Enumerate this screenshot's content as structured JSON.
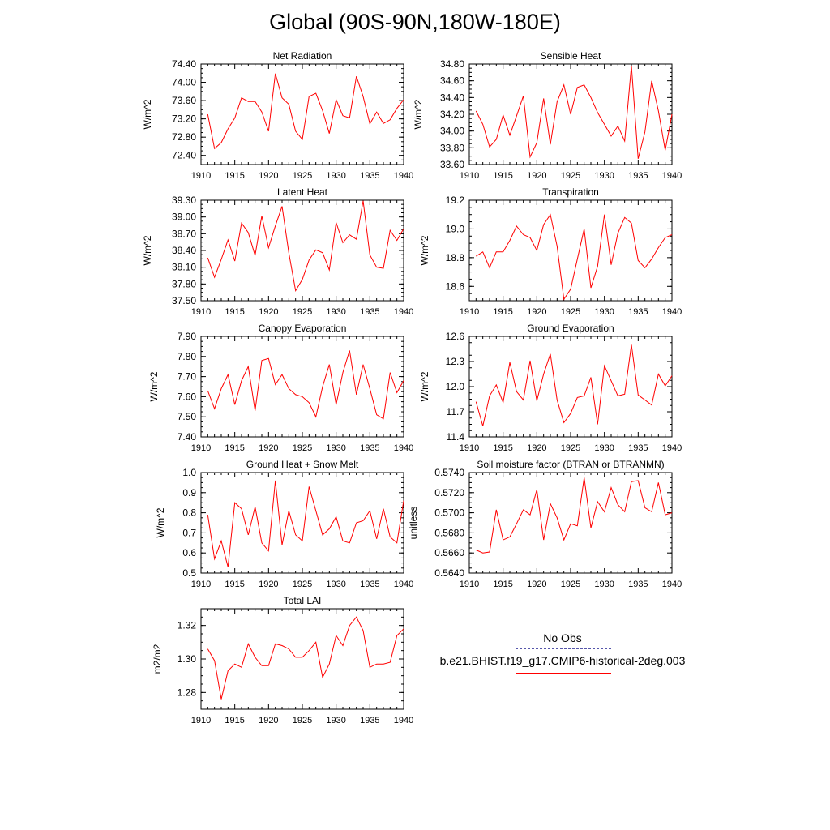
{
  "page_title": "Global (90S-90N,180W-180E)",
  "legend": {
    "obs_label": "No Obs",
    "model_label": "b.e21.BHIST.f19_g17.CMIP6-historical-2deg.003",
    "obs_color": "#5555aa",
    "model_color": "#ff0000"
  },
  "chart_data": [
    {
      "type": "line",
      "title": "Net Radiation",
      "ylabel": "W/m^2",
      "xlim": [
        1910,
        1940
      ],
      "ylim": [
        72.2,
        74.4
      ],
      "yticks": [
        72.4,
        72.8,
        73.2,
        73.6,
        74.0,
        74.4
      ],
      "ytick_labels": [
        "72.40",
        "72.80",
        "73.20",
        "73.60",
        "74.00",
        "74.40"
      ],
      "xticks": [
        1910,
        1915,
        1920,
        1925,
        1930,
        1935,
        1940
      ],
      "x": [
        1911,
        1912,
        1913,
        1914,
        1915,
        1916,
        1917,
        1918,
        1919,
        1920,
        1921,
        1922,
        1923,
        1924,
        1925,
        1926,
        1927,
        1928,
        1929,
        1930,
        1931,
        1932,
        1933,
        1934,
        1935,
        1936,
        1937,
        1938,
        1939,
        1940
      ],
      "series": [
        {
          "values": [
            73.3,
            72.55,
            72.68,
            72.98,
            73.22,
            73.66,
            73.58,
            73.58,
            73.35,
            72.93,
            74.19,
            73.66,
            73.52,
            72.93,
            72.75,
            73.69,
            73.76,
            73.38,
            72.88,
            73.62,
            73.27,
            73.22,
            74.13,
            73.69,
            73.09,
            73.35,
            73.1,
            73.18,
            73.43,
            73.62
          ]
        }
      ]
    },
    {
      "type": "line",
      "title": "Sensible Heat",
      "ylabel": "W/m^2",
      "xlim": [
        1910,
        1940
      ],
      "ylim": [
        33.6,
        34.8
      ],
      "yticks": [
        33.6,
        33.8,
        34.0,
        34.2,
        34.4,
        34.6,
        34.8
      ],
      "ytick_labels": [
        "33.60",
        "33.80",
        "34.00",
        "34.20",
        "34.40",
        "34.60",
        "34.80"
      ],
      "xticks": [
        1910,
        1915,
        1920,
        1925,
        1930,
        1935,
        1940
      ],
      "x": [
        1911,
        1912,
        1913,
        1914,
        1915,
        1916,
        1917,
        1918,
        1919,
        1920,
        1921,
        1922,
        1923,
        1924,
        1925,
        1926,
        1927,
        1928,
        1929,
        1930,
        1931,
        1932,
        1933,
        1934,
        1935,
        1936,
        1937,
        1938,
        1939,
        1940
      ],
      "series": [
        {
          "values": [
            34.24,
            34.08,
            33.81,
            33.9,
            34.19,
            33.95,
            34.18,
            34.42,
            33.69,
            33.86,
            34.39,
            33.84,
            34.35,
            34.55,
            34.2,
            34.52,
            34.55,
            34.4,
            34.22,
            34.08,
            33.94,
            34.06,
            33.88,
            34.78,
            33.67,
            33.99,
            34.6,
            34.24,
            33.77,
            34.2
          ]
        }
      ]
    },
    {
      "type": "line",
      "title": "Latent Heat",
      "ylabel": "W/m^2",
      "xlim": [
        1910,
        1940
      ],
      "ylim": [
        37.5,
        39.3
      ],
      "yticks": [
        37.5,
        37.8,
        38.1,
        38.4,
        38.7,
        39.0,
        39.3
      ],
      "ytick_labels": [
        "37.50",
        "37.80",
        "38.10",
        "38.40",
        "38.70",
        "39.00",
        "39.30"
      ],
      "xticks": [
        1910,
        1915,
        1920,
        1925,
        1930,
        1935,
        1940
      ],
      "x": [
        1911,
        1912,
        1913,
        1914,
        1915,
        1916,
        1917,
        1918,
        1919,
        1920,
        1921,
        1922,
        1923,
        1924,
        1925,
        1926,
        1927,
        1928,
        1929,
        1930,
        1931,
        1932,
        1933,
        1934,
        1935,
        1936,
        1937,
        1938,
        1939,
        1940
      ],
      "series": [
        {
          "values": [
            38.27,
            37.92,
            38.24,
            38.59,
            38.21,
            38.89,
            38.72,
            38.31,
            39.02,
            38.45,
            38.84,
            39.19,
            38.36,
            37.68,
            37.88,
            38.23,
            38.41,
            38.36,
            38.05,
            38.9,
            38.54,
            38.68,
            38.6,
            39.29,
            38.32,
            38.1,
            38.08,
            38.76,
            38.58,
            38.79
          ]
        }
      ]
    },
    {
      "type": "line",
      "title": "Transpiration",
      "ylabel": "W/m^2",
      "xlim": [
        1910,
        1940
      ],
      "ylim": [
        18.5,
        19.2
      ],
      "yticks": [
        18.6,
        18.8,
        19.0,
        19.2
      ],
      "ytick_labels": [
        "18.6",
        "18.8",
        "19.0",
        "19.2"
      ],
      "xticks": [
        1910,
        1915,
        1920,
        1925,
        1930,
        1935,
        1940
      ],
      "x": [
        1911,
        1912,
        1913,
        1914,
        1915,
        1916,
        1917,
        1918,
        1919,
        1920,
        1921,
        1922,
        1923,
        1924,
        1925,
        1926,
        1927,
        1928,
        1929,
        1930,
        1931,
        1932,
        1933,
        1934,
        1935,
        1936,
        1937,
        1938,
        1939,
        1940
      ],
      "series": [
        {
          "values": [
            18.81,
            18.84,
            18.73,
            18.84,
            18.84,
            18.92,
            19.02,
            18.96,
            18.94,
            18.85,
            19.03,
            19.1,
            18.88,
            18.51,
            18.58,
            18.79,
            19.0,
            18.59,
            18.74,
            19.1,
            18.75,
            18.97,
            19.08,
            19.04,
            18.78,
            18.73,
            18.79,
            18.87,
            18.94,
            18.96
          ]
        }
      ]
    },
    {
      "type": "line",
      "title": "Canopy Evaporation",
      "ylabel": "W/m^2",
      "xlim": [
        1910,
        1940
      ],
      "ylim": [
        7.4,
        7.9
      ],
      "yticks": [
        7.4,
        7.5,
        7.6,
        7.7,
        7.8,
        7.9
      ],
      "ytick_labels": [
        "7.40",
        "7.50",
        "7.60",
        "7.70",
        "7.80",
        "7.90"
      ],
      "xticks": [
        1910,
        1915,
        1920,
        1925,
        1930,
        1935,
        1940
      ],
      "x": [
        1911,
        1912,
        1913,
        1914,
        1915,
        1916,
        1917,
        1918,
        1919,
        1920,
        1921,
        1922,
        1923,
        1924,
        1925,
        1926,
        1927,
        1928,
        1929,
        1930,
        1931,
        1932,
        1933,
        1934,
        1935,
        1936,
        1937,
        1938,
        1939,
        1940
      ],
      "series": [
        {
          "values": [
            7.63,
            7.54,
            7.64,
            7.71,
            7.56,
            7.68,
            7.75,
            7.53,
            7.78,
            7.79,
            7.66,
            7.71,
            7.64,
            7.61,
            7.6,
            7.57,
            7.5,
            7.65,
            7.76,
            7.56,
            7.72,
            7.83,
            7.61,
            7.76,
            7.64,
            7.51,
            7.49,
            7.72,
            7.62,
            7.68
          ]
        }
      ]
    },
    {
      "type": "line",
      "title": "Ground Evaporation",
      "ylabel": "W/m^2",
      "xlim": [
        1910,
        1940
      ],
      "ylim": [
        11.4,
        12.6
      ],
      "yticks": [
        11.4,
        11.7,
        12.0,
        12.3,
        12.6
      ],
      "ytick_labels": [
        "11.4",
        "11.7",
        "12.0",
        "12.3",
        "12.6"
      ],
      "xticks": [
        1910,
        1915,
        1920,
        1925,
        1930,
        1935,
        1940
      ],
      "x": [
        1911,
        1912,
        1913,
        1914,
        1915,
        1916,
        1917,
        1918,
        1919,
        1920,
        1921,
        1922,
        1923,
        1924,
        1925,
        1926,
        1927,
        1928,
        1929,
        1930,
        1931,
        1932,
        1933,
        1934,
        1935,
        1936,
        1937,
        1938,
        1939,
        1940
      ],
      "series": [
        {
          "values": [
            11.82,
            11.53,
            11.89,
            12.02,
            11.81,
            12.29,
            11.94,
            11.84,
            12.31,
            11.83,
            12.15,
            12.39,
            11.84,
            11.57,
            11.68,
            11.87,
            11.89,
            12.11,
            11.55,
            12.25,
            12.07,
            11.89,
            11.91,
            12.5,
            11.9,
            11.84,
            11.78,
            12.15,
            12.01,
            12.13
          ]
        }
      ]
    },
    {
      "type": "line",
      "title": "Ground Heat + Snow Melt",
      "ylabel": "W/m^2",
      "xlim": [
        1910,
        1940
      ],
      "ylim": [
        0.5,
        1.0
      ],
      "yticks": [
        0.5,
        0.6,
        0.7,
        0.8,
        0.9,
        1.0
      ],
      "ytick_labels": [
        "0.5",
        "0.6",
        "0.7",
        "0.8",
        "0.9",
        "1.0"
      ],
      "xticks": [
        1910,
        1915,
        1920,
        1925,
        1930,
        1935,
        1940
      ],
      "x": [
        1911,
        1912,
        1913,
        1914,
        1915,
        1916,
        1917,
        1918,
        1919,
        1920,
        1921,
        1922,
        1923,
        1924,
        1925,
        1926,
        1927,
        1928,
        1929,
        1930,
        1931,
        1932,
        1933,
        1934,
        1935,
        1936,
        1937,
        1938,
        1939,
        1940
      ],
      "series": [
        {
          "values": [
            0.79,
            0.57,
            0.66,
            0.53,
            0.85,
            0.82,
            0.69,
            0.83,
            0.65,
            0.61,
            0.96,
            0.64,
            0.81,
            0.69,
            0.66,
            0.93,
            0.81,
            0.69,
            0.72,
            0.78,
            0.66,
            0.65,
            0.75,
            0.76,
            0.81,
            0.67,
            0.82,
            0.68,
            0.65,
            0.86
          ]
        }
      ]
    },
    {
      "type": "line",
      "title": "Soil moisture factor (BTRAN or BTRANMN)",
      "ylabel": "unitless",
      "xlim": [
        1910,
        1940
      ],
      "ylim": [
        0.564,
        0.574
      ],
      "yticks": [
        0.564,
        0.566,
        0.568,
        0.57,
        0.572,
        0.574
      ],
      "ytick_labels": [
        "0.5640",
        "0.5660",
        "0.5680",
        "0.5700",
        "0.5720",
        "0.5740"
      ],
      "xticks": [
        1910,
        1915,
        1920,
        1925,
        1930,
        1935,
        1940
      ],
      "x": [
        1911,
        1912,
        1913,
        1914,
        1915,
        1916,
        1917,
        1918,
        1919,
        1920,
        1921,
        1922,
        1923,
        1924,
        1925,
        1926,
        1927,
        1928,
        1929,
        1930,
        1931,
        1932,
        1933,
        1934,
        1935,
        1936,
        1937,
        1938,
        1939,
        1940
      ],
      "series": [
        {
          "values": [
            0.5663,
            0.566,
            0.5661,
            0.5703,
            0.5673,
            0.5676,
            0.5689,
            0.5703,
            0.5698,
            0.5723,
            0.5673,
            0.5709,
            0.5695,
            0.5673,
            0.5689,
            0.5687,
            0.5735,
            0.5685,
            0.5711,
            0.5701,
            0.5725,
            0.5708,
            0.5701,
            0.5731,
            0.5732,
            0.5705,
            0.5701,
            0.573,
            0.5698,
            0.57
          ]
        }
      ]
    },
    {
      "type": "line",
      "title": "Total LAI",
      "ylabel": "m2/m2",
      "xlim": [
        1910,
        1940
      ],
      "ylim": [
        1.27,
        1.33
      ],
      "yticks": [
        1.28,
        1.3,
        1.32
      ],
      "ytick_labels": [
        "1.28",
        "1.30",
        "1.32"
      ],
      "xticks": [
        1910,
        1915,
        1920,
        1925,
        1930,
        1935,
        1940
      ],
      "x": [
        1911,
        1912,
        1913,
        1914,
        1915,
        1916,
        1917,
        1918,
        1919,
        1920,
        1921,
        1922,
        1923,
        1924,
        1925,
        1926,
        1927,
        1928,
        1929,
        1930,
        1931,
        1932,
        1933,
        1934,
        1935,
        1936,
        1937,
        1938,
        1939,
        1940
      ],
      "series": [
        {
          "values": [
            1.306,
            1.299,
            1.276,
            1.293,
            1.297,
            1.295,
            1.309,
            1.301,
            1.296,
            1.296,
            1.309,
            1.308,
            1.306,
            1.301,
            1.301,
            1.305,
            1.31,
            1.289,
            1.297,
            1.314,
            1.308,
            1.32,
            1.325,
            1.317,
            1.295,
            1.297,
            1.297,
            1.298,
            1.314,
            1.318
          ]
        }
      ]
    }
  ]
}
